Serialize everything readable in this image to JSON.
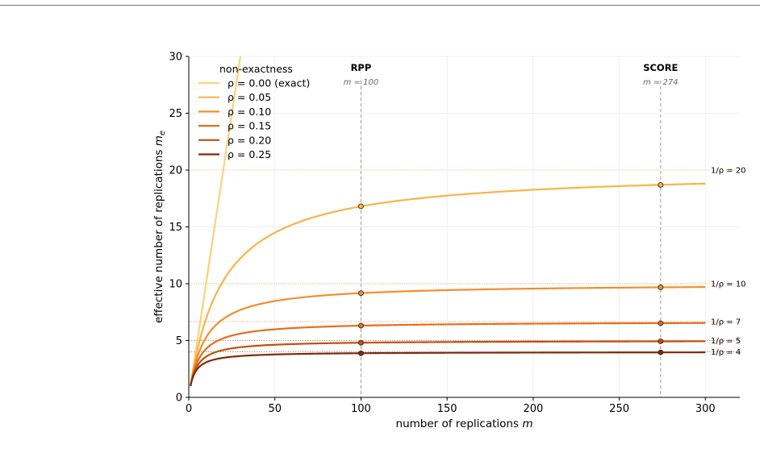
{
  "chart_data": {
    "type": "line",
    "xlabel": "number of replications m",
    "ylabel": "effective number of replications m_e",
    "xlim": [
      0,
      320
    ],
    "ylim": [
      0,
      30
    ],
    "xticks": [
      0,
      50,
      100,
      150,
      200,
      250,
      300
    ],
    "yticks": [
      0,
      5,
      10,
      15,
      20,
      25,
      30
    ],
    "grid": true,
    "legend": {
      "title": "non-exactness",
      "placement": "top-left"
    },
    "formula": "m_e = m / (1 + rho * (m - 1))",
    "x_range": [
      1,
      300
    ],
    "series": [
      {
        "name": "ρ = 0.00  (exact)",
        "rho": 0.0,
        "color": "#fcd27a"
      },
      {
        "name": "ρ = 0.05",
        "rho": 0.05,
        "color": "#f7b548"
      },
      {
        "name": "ρ = 0.10",
        "rho": 0.1,
        "color": "#f28f2c"
      },
      {
        "name": "ρ = 0.15",
        "rho": 0.15,
        "color": "#e46e1e"
      },
      {
        "name": "ρ = 0.20",
        "rho": 0.2,
        "color": "#c24f11"
      },
      {
        "name": "ρ = 0.25",
        "rho": 0.25,
        "color": "#7d2b0c"
      }
    ],
    "reference_lines": [
      {
        "x": 100,
        "label": "RPP",
        "sublabel": "m = 100"
      },
      {
        "x": 274,
        "label": "SCORE",
        "sublabel": "m = 274"
      }
    ],
    "highlighted_points": [
      {
        "x": 100,
        "y": 16.81
      },
      {
        "x": 100,
        "y": 9.17
      },
      {
        "x": 100,
        "y": 6.31
      },
      {
        "x": 100,
        "y": 4.81
      },
      {
        "x": 100,
        "y": 3.88
      },
      {
        "x": 274,
        "y": 18.69
      },
      {
        "x": 274,
        "y": 9.68
      },
      {
        "x": 274,
        "y": 6.52
      },
      {
        "x": 274,
        "y": 4.93
      },
      {
        "x": 274,
        "y": 3.96
      }
    ],
    "asymptotes": [
      {
        "y": 20,
        "label": "1/ρ = 20",
        "color": "#f7b548"
      },
      {
        "y": 10,
        "label": "1/ρ = 10",
        "color": "#f28f2c"
      },
      {
        "y": 6.667,
        "label": "1/ρ = 7",
        "color": "#e46e1e"
      },
      {
        "y": 5,
        "label": "1/ρ = 5",
        "color": "#c24f11"
      },
      {
        "y": 4,
        "label": "1/ρ = 4",
        "color": "#7d2b0c"
      }
    ]
  }
}
